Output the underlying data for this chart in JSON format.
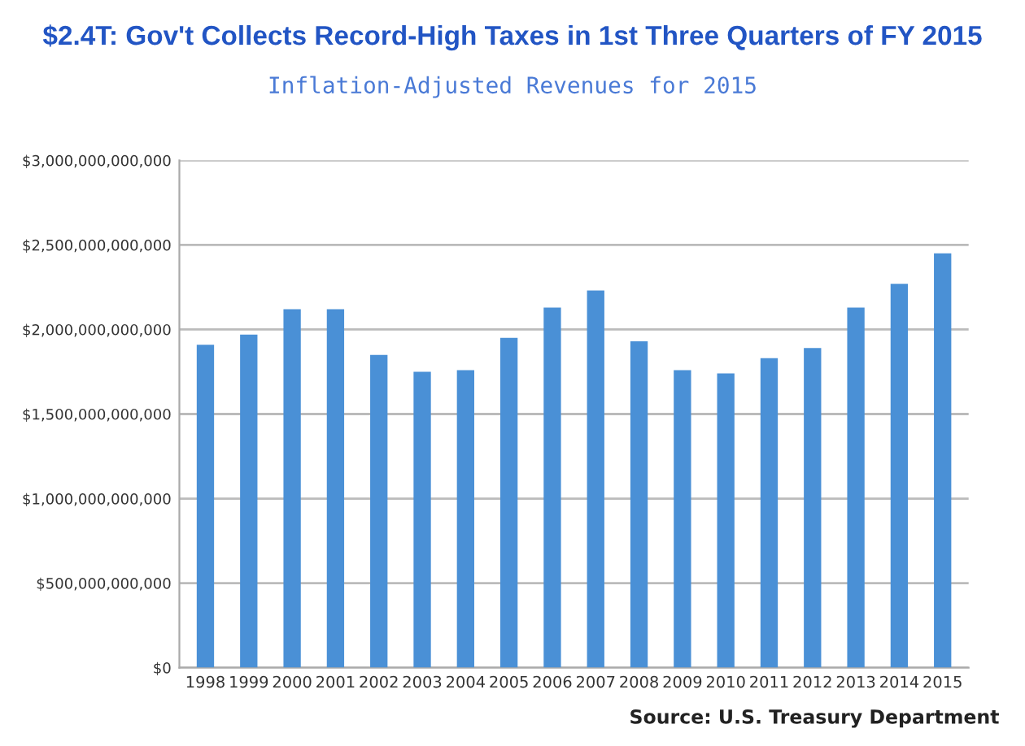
{
  "chart_data": {
    "type": "bar",
    "title": "$2.4T: Gov't Collects Record-High Taxes in 1st Three Quarters of FY 2015",
    "subtitle": "Inflation-Adjusted Revenues for 2015",
    "categories": [
      "1998",
      "1999",
      "2000",
      "2001",
      "2002",
      "2003",
      "2004",
      "2005",
      "2006",
      "2007",
      "2008",
      "2009",
      "2010",
      "2011",
      "2012",
      "2013",
      "2014",
      "2015"
    ],
    "values": [
      1910000000000,
      1970000000000,
      2120000000000,
      2120000000000,
      1850000000000,
      1750000000000,
      1760000000000,
      1950000000000,
      2130000000000,
      2230000000000,
      1930000000000,
      1760000000000,
      1740000000000,
      1830000000000,
      1890000000000,
      2130000000000,
      2270000000000,
      2450000000000
    ],
    "color": "#4a90d6",
    "ylim": [
      0,
      3000000000000
    ],
    "yticks": [
      {
        "value": 0,
        "label": "$0"
      },
      {
        "value": 500000000000,
        "label": "$500,000,000,000"
      },
      {
        "value": 1000000000000,
        "label": "$1,000,000,000,000"
      },
      {
        "value": 1500000000000,
        "label": "$1,500,000,000,000"
      },
      {
        "value": 2000000000000,
        "label": "$2,000,000,000,000"
      },
      {
        "value": 2500000000000,
        "label": "$2,500,000,000,000"
      },
      {
        "value": 3000000000000,
        "label": "$3,000,000,000,000"
      }
    ],
    "grid": "y",
    "annotations": [
      "Source: U.S. Treasury Department"
    ]
  }
}
